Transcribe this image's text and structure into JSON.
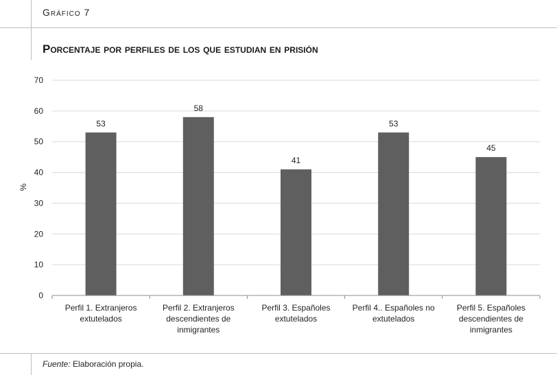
{
  "header": {
    "figure_label": "Gráfico 7",
    "title": "Porcentaje por perfiles de los que estudian en prisión"
  },
  "footer": {
    "source_label": "Fuente:",
    "source_text": "Elaboración propia."
  },
  "chart_data": {
    "type": "bar",
    "title": "Porcentaje por perfiles de los que estudian en prisión",
    "xlabel": "",
    "ylabel": "%",
    "ylim": [
      0,
      70
    ],
    "yticks": [
      0,
      10,
      20,
      30,
      40,
      50,
      60,
      70
    ],
    "grid": true,
    "legend": "none",
    "bar_color": "#5f5f5f",
    "categories": [
      [
        "Perfil 1. Extranjeros",
        "extutelados"
      ],
      [
        "Perfil 2. Extranjeros",
        "descendientes de",
        "inmigrantes"
      ],
      [
        "Perfil 3. Españoles",
        "extutelados"
      ],
      [
        "Perfil 4.. Españoles no",
        "extutelados"
      ],
      [
        "Perfil 5. Españoles",
        "descendientes de",
        "inmigrantes"
      ]
    ],
    "values": [
      53,
      58,
      41,
      53,
      45
    ]
  }
}
